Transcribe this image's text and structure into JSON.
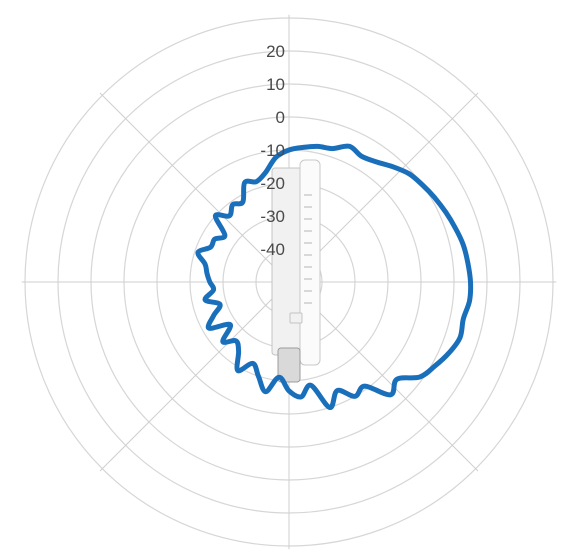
{
  "chart_data": {
    "type": "polar-line",
    "title": "",
    "radial_axis": {
      "ticks": [
        20,
        10,
        0,
        -10,
        -20,
        -30,
        -40
      ],
      "range": [
        -50,
        30
      ],
      "label_angle_deg": 0
    },
    "angular_axis": {
      "spoke_angles_deg": [
        0,
        45,
        90,
        135,
        180,
        225,
        270,
        315
      ]
    },
    "grid": true,
    "legend": "none",
    "colors": {
      "trace": "#1a6fbb",
      "grid": "#d6d6d6",
      "text": "#4a4a4a"
    },
    "series": [
      {
        "angle_deg": [
          0,
          6,
          12,
          18,
          24,
          30,
          36,
          42,
          48,
          54,
          60,
          66,
          72,
          78,
          84,
          90,
          96,
          102,
          108,
          114,
          120,
          126,
          132,
          138,
          144,
          150,
          156,
          162,
          168,
          174,
          180,
          186,
          192,
          198,
          204,
          210,
          216,
          222,
          228,
          234,
          240,
          246,
          252,
          258,
          264,
          270,
          276,
          282,
          288,
          294,
          300,
          306,
          312,
          318,
          324,
          330,
          336,
          342,
          348,
          354
        ],
        "value_db": [
          -10,
          -9,
          -8,
          -7.5,
          -5,
          -6,
          -5,
          -3,
          -1,
          0,
          1,
          2,
          3,
          4,
          4.5,
          5,
          5,
          4,
          4.5,
          3,
          1,
          -1,
          -6,
          -4,
          -11,
          -10,
          -14,
          -10,
          -18,
          -15,
          -17,
          -21,
          -16,
          -20,
          -23,
          -19,
          -24,
          -26,
          -23,
          -28,
          -22,
          -25,
          -28,
          -24,
          -27,
          -26,
          -25,
          -24,
          -21,
          -24,
          -24,
          -26,
          -20,
          -23,
          -21,
          -22,
          -17,
          -18,
          -16,
          -12
        ]
      }
    ]
  },
  "figure": {
    "overlay": "device-image"
  }
}
